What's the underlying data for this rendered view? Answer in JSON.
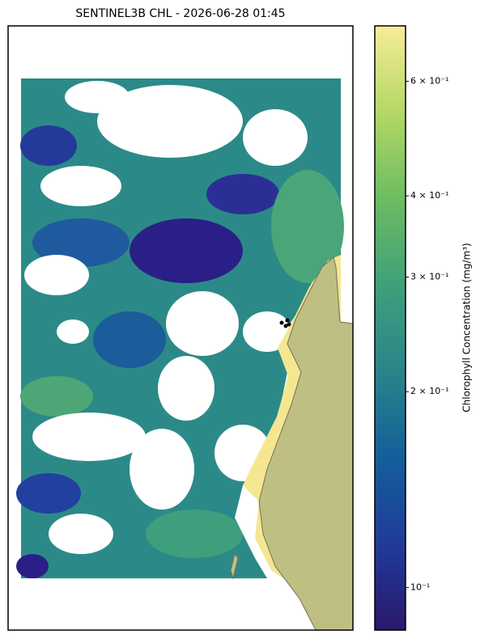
{
  "chart_data": {
    "type": "colormap",
    "title": "SENTINEL3B CHL - 2026-06-28 01:45",
    "colorbar_label": "Chlorophyll Concentration (mg/m³)",
    "log_scale": true,
    "clim": [
      0.086,
      0.73
    ],
    "colormap": [
      "#2a186b",
      "#213b9b",
      "#135f9a",
      "#2a8489",
      "#3fa07a",
      "#6dbc62",
      "#b3d865",
      "#f8ec98"
    ],
    "cticks": [
      {
        "value": 0.1,
        "label": "10⁻¹"
      },
      {
        "value": 0.2,
        "label": "2 × 10⁻¹"
      },
      {
        "value": 0.3,
        "label": "3 × 10⁻¹"
      },
      {
        "value": 0.4,
        "label": "4 × 10⁻¹"
      },
      {
        "value": 0.6,
        "label": "6 × 10⁻¹"
      }
    ]
  }
}
